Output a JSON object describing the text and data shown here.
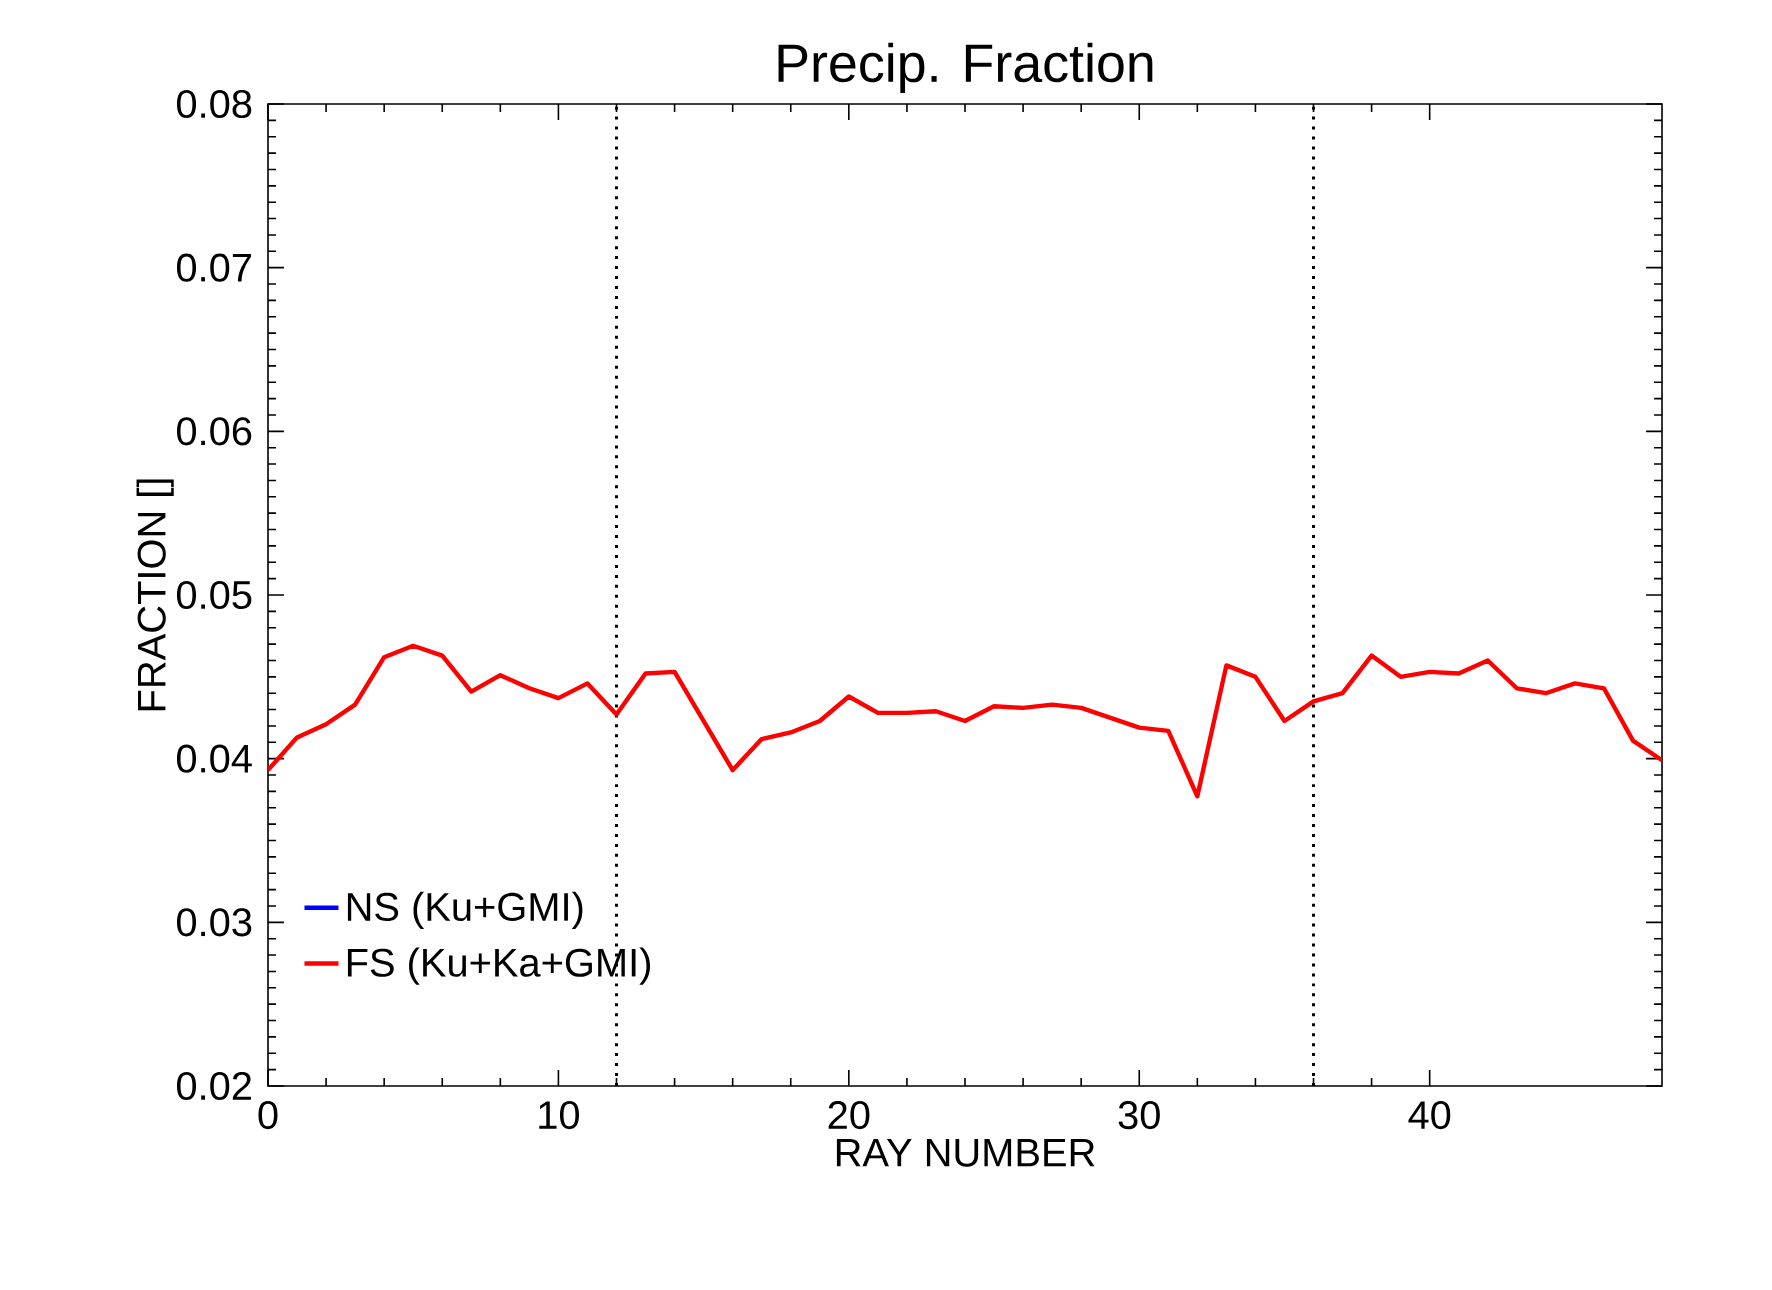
{
  "chart_data": {
    "type": "line",
    "title": "Precip. Fraction",
    "xlabel": "RAY NUMBER",
    "ylabel": "FRACTION []",
    "x": [
      0,
      1,
      2,
      3,
      4,
      5,
      6,
      7,
      8,
      9,
      10,
      11,
      12,
      13,
      14,
      15,
      16,
      17,
      18,
      19,
      20,
      21,
      22,
      23,
      24,
      25,
      26,
      27,
      28,
      29,
      30,
      31,
      32,
      33,
      34,
      35,
      36,
      37,
      38,
      39,
      40,
      41,
      42,
      43,
      44,
      45,
      46,
      47,
      48
    ],
    "series": [
      {
        "name": "NS (Ku+GMI)",
        "color": "#0000ff",
        "values": [
          null,
          null,
          null,
          null,
          null,
          null,
          null,
          null,
          null,
          null,
          null,
          null,
          null,
          null,
          null,
          null,
          null,
          null,
          null,
          null,
          null,
          null,
          null,
          null,
          null,
          null,
          null,
          null,
          null,
          null,
          null,
          null,
          null,
          null,
          null,
          null,
          null,
          null,
          null,
          null,
          null,
          null,
          null,
          null,
          null,
          null,
          null,
          null,
          null
        ]
      },
      {
        "name": "FS (Ku+Ka+GMI)",
        "color": "#ff0000",
        "values": [
          0.0393,
          0.0413,
          0.0421,
          0.0433,
          0.0462,
          0.0469,
          0.0463,
          0.0441,
          0.0451,
          0.0443,
          0.0437,
          0.0446,
          0.0427,
          0.0452,
          0.0453,
          0.0423,
          0.0393,
          0.0412,
          0.0416,
          0.0423,
          0.0438,
          0.0428,
          0.0428,
          0.0429,
          0.0423,
          0.0432,
          0.0431,
          0.0433,
          0.0431,
          0.0425,
          0.0419,
          0.0417,
          0.0377,
          0.0457,
          0.045,
          0.0423,
          0.0435,
          0.044,
          0.0463,
          0.045,
          0.0453,
          0.0452,
          0.046,
          0.0443,
          0.044,
          0.0446,
          0.0443,
          0.0411,
          0.0399
        ]
      }
    ],
    "xlim": [
      0,
      48
    ],
    "xticks": [
      0,
      10,
      20,
      30,
      40
    ],
    "ylim": [
      0.02,
      0.08
    ],
    "yticks": [
      0.02,
      0.03,
      0.04,
      0.05,
      0.06,
      0.07,
      0.08
    ],
    "ref_lines": [
      {
        "axis": "x",
        "value": 12,
        "line_style": "dotted",
        "color": "#000000"
      },
      {
        "axis": "x",
        "value": 36,
        "line_style": "dotted",
        "color": "#000000"
      }
    ],
    "legend": "bottom left",
    "grid": false,
    "line_style": "solid",
    "marker": "none"
  }
}
